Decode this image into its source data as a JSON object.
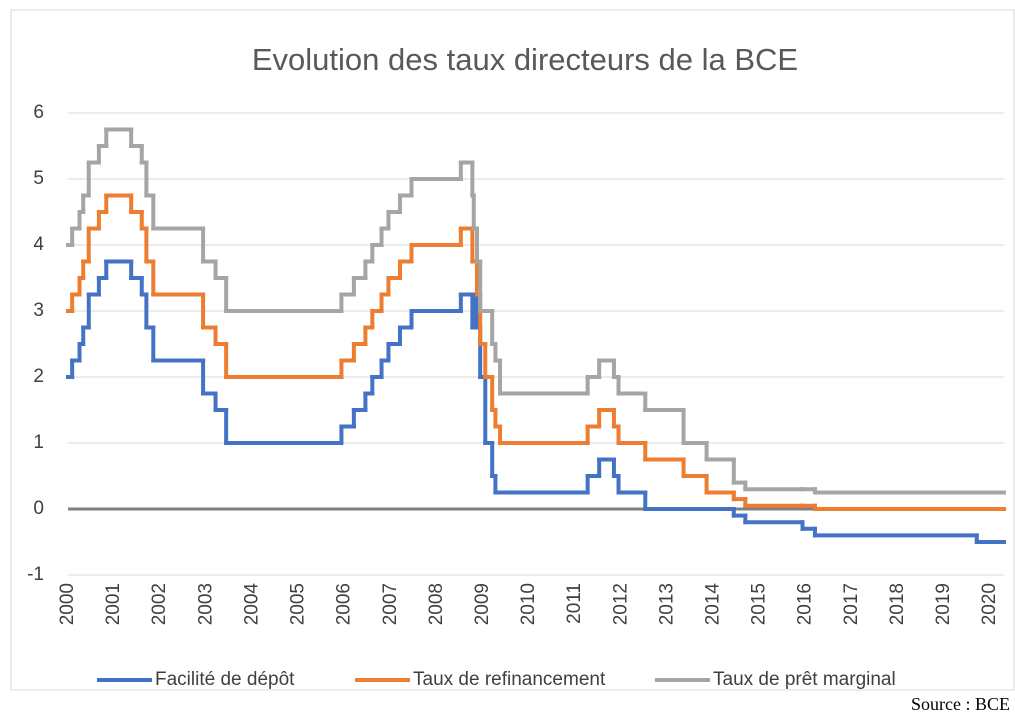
{
  "chart_data": {
    "type": "line",
    "step": "post",
    "title": "Evolution des taux directeurs de la BCE",
    "source": "Source : BCE",
    "x": [
      2000,
      2000.09,
      2000.25,
      2000.33,
      2000.45,
      2000.67,
      2000.83,
      2001.37,
      2001.6,
      2001.7,
      2001.85,
      2002.93,
      2003.2,
      2003.43,
      2005.93,
      2006.2,
      2006.45,
      2006.6,
      2006.8,
      2006.95,
      2007.2,
      2007.45,
      2008.52,
      2008.77,
      2008.8,
      2008.87,
      2008.94,
      2009.05,
      2009.2,
      2009.27,
      2009.37,
      2011.27,
      2011.52,
      2011.84,
      2011.94,
      2012.52,
      2013.35,
      2013.85,
      2014.44,
      2014.69,
      2015.93,
      2016.2,
      2019.71
    ],
    "series": [
      {
        "name": "Facilité de dépôt",
        "color": "#4472c4",
        "values": [
          2,
          2.25,
          2.5,
          2.75,
          3.25,
          3.5,
          3.75,
          3.5,
          3.25,
          2.75,
          2.25,
          1.75,
          1.5,
          1,
          1.25,
          1.5,
          1.75,
          2,
          2.25,
          2.5,
          2.75,
          3,
          3.25,
          2.75,
          3.25,
          2.75,
          2,
          1,
          0.5,
          0.25,
          0.25,
          0.5,
          0.75,
          0.5,
          0.25,
          0,
          0,
          0,
          -0.1,
          -0.2,
          -0.3,
          -0.4,
          -0.5
        ]
      },
      {
        "name": "Taux de refinancement",
        "color": "#ed7d31",
        "values": [
          3,
          3.25,
          3.5,
          3.75,
          4.25,
          4.5,
          4.75,
          4.5,
          4.25,
          3.75,
          3.25,
          2.75,
          2.5,
          2,
          2.25,
          2.5,
          2.75,
          3,
          3.25,
          3.5,
          3.75,
          4,
          4.25,
          3.75,
          3.75,
          3.25,
          2.5,
          2,
          1.5,
          1.25,
          1,
          1.25,
          1.5,
          1.25,
          1,
          0.75,
          0.5,
          0.25,
          0.15,
          0.05,
          0.05,
          0,
          0
        ]
      },
      {
        "name": "Taux de prêt marginal",
        "color": "#a5a5a5",
        "values": [
          4,
          4.25,
          4.5,
          4.75,
          5.25,
          5.5,
          5.75,
          5.5,
          5.25,
          4.75,
          4.25,
          3.75,
          3.5,
          3,
          3.25,
          3.5,
          3.75,
          4,
          4.25,
          4.5,
          4.75,
          5,
          5.25,
          4.75,
          4.25,
          3.75,
          3,
          3,
          2.5,
          2.25,
          1.75,
          2,
          2.25,
          2,
          1.75,
          1.5,
          1,
          0.75,
          0.4,
          0.3,
          0.3,
          0.25,
          0.25
        ]
      }
    ],
    "xlim": [
      2000,
      2020.3
    ],
    "xticks": [
      2000,
      2001,
      2002,
      2003,
      2004,
      2005,
      2006,
      2007,
      2008,
      2009,
      2010,
      2011,
      2012,
      2013,
      2014,
      2015,
      2016,
      2017,
      2018,
      2019,
      2020
    ],
    "ylim": [
      -1,
      6
    ],
    "yticks": [
      -1,
      0,
      1,
      2,
      3,
      4,
      5,
      6
    ],
    "grid": true,
    "legend": "bottom"
  }
}
